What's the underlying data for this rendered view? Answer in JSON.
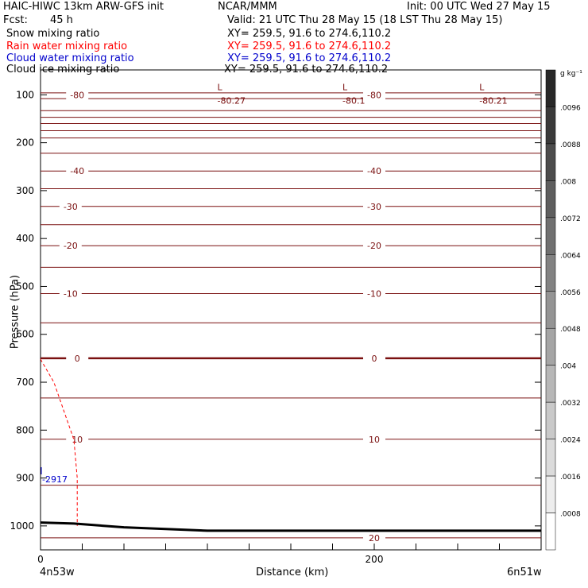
{
  "header": {
    "model": "HAIC-HIWC 13km ARW-GFS init",
    "org": "NCAR/MMM",
    "init": "Init: 00 UTC Wed 27 May 15",
    "fcst_label": "Fcst:",
    "fcst_value": "45 h",
    "valid": "Valid: 21 UTC Thu 28 May 15 (18 LST Thu 28 May 15)"
  },
  "fields": [
    {
      "name": "Snow mixing ratio",
      "color": "#000000",
      "xy": "XY= 259.5, 91.6 to 274.6,110.2"
    },
    {
      "name": "Rain water mixing ratio",
      "color": "#ff0000",
      "xy": "XY= 259.5, 91.6 to 274.6,110.2"
    },
    {
      "name": "Cloud water mixing ratio",
      "color": "#0000cc",
      "xy": "XY= 259.5, 91.6 to 274.6,110.2"
    },
    {
      "name": "Cloud ice mixing ratio",
      "color": "#000000",
      "xy": "XY= 259.5, 91.6 to 274.6,110.2"
    }
  ],
  "axes": {
    "ylabel": "Pressure (hPa)",
    "xlabel": "Distance (km)",
    "left_end": "4n53w",
    "right_end": "6n51w"
  },
  "colorbar": {
    "unit": "g kg⁻¹",
    "labels": [
      ".0096",
      ".0088",
      ".008",
      ".0072",
      ".0064",
      ".0056",
      ".0048",
      ".004",
      ".0032",
      ".0024",
      ".0016",
      ".0008"
    ]
  },
  "annotations": {
    "cloud_label": "-2917",
    "lows": [
      "-80.27",
      "-80.1",
      "-80.21"
    ],
    "low_mark": "L"
  },
  "chart_data": {
    "type": "line",
    "title": "HAIC-HIWC 13km ARW-GFS init",
    "xlabel": "Distance (km)",
    "ylabel": "Pressure (hPa)",
    "xlim": [
      0,
      300
    ],
    "ylim_top_bottom": [
      1050,
      48
    ],
    "y_scale": "linear, inverted",
    "xticks": [
      0,
      200
    ],
    "yticks": [
      100,
      200,
      300,
      400,
      500,
      600,
      700,
      800,
      900,
      1000
    ],
    "grid": false,
    "temperature_contours_C": [
      {
        "level": -80,
        "label": "-80",
        "x": [
          0,
          300
        ],
        "p": [
          100,
          100
        ]
      },
      {
        "level": -40,
        "label": "-40",
        "x": [
          0,
          300
        ],
        "p": [
          259,
          259
        ]
      },
      {
        "level": -30,
        "label": "-30",
        "x": [
          0,
          300
        ],
        "p": [
          333,
          333
        ]
      },
      {
        "level": -20,
        "label": "-20",
        "x": [
          0,
          300
        ],
        "p": [
          415,
          415
        ]
      },
      {
        "level": -10,
        "label": "-10",
        "x": [
          0,
          300
        ],
        "p": [
          515,
          515
        ]
      },
      {
        "level": 0,
        "label": "0",
        "x": [
          0,
          300
        ],
        "p": [
          650,
          650
        ]
      },
      {
        "level": 10,
        "label": "10",
        "x": [
          0,
          300
        ],
        "p": [
          819,
          819
        ]
      },
      {
        "level": 20,
        "label": "20",
        "x": [
          0,
          300
        ],
        "p": [
          1025,
          1025
        ]
      }
    ],
    "rain_water_contour": {
      "x": [
        0,
        8,
        20,
        22,
        22
      ],
      "p": [
        652,
        700,
        820,
        900,
        1000
      ]
    },
    "ground_surface": {
      "x": [
        0,
        20,
        50,
        100,
        300
      ],
      "p": [
        993,
        995,
        1003,
        1010,
        1010
      ]
    },
    "colorbar_levels": [
      0.0008,
      0.0016,
      0.0024,
      0.0032,
      0.004,
      0.0048,
      0.0056,
      0.0064,
      0.0072,
      0.008,
      0.0088,
      0.0096
    ]
  }
}
